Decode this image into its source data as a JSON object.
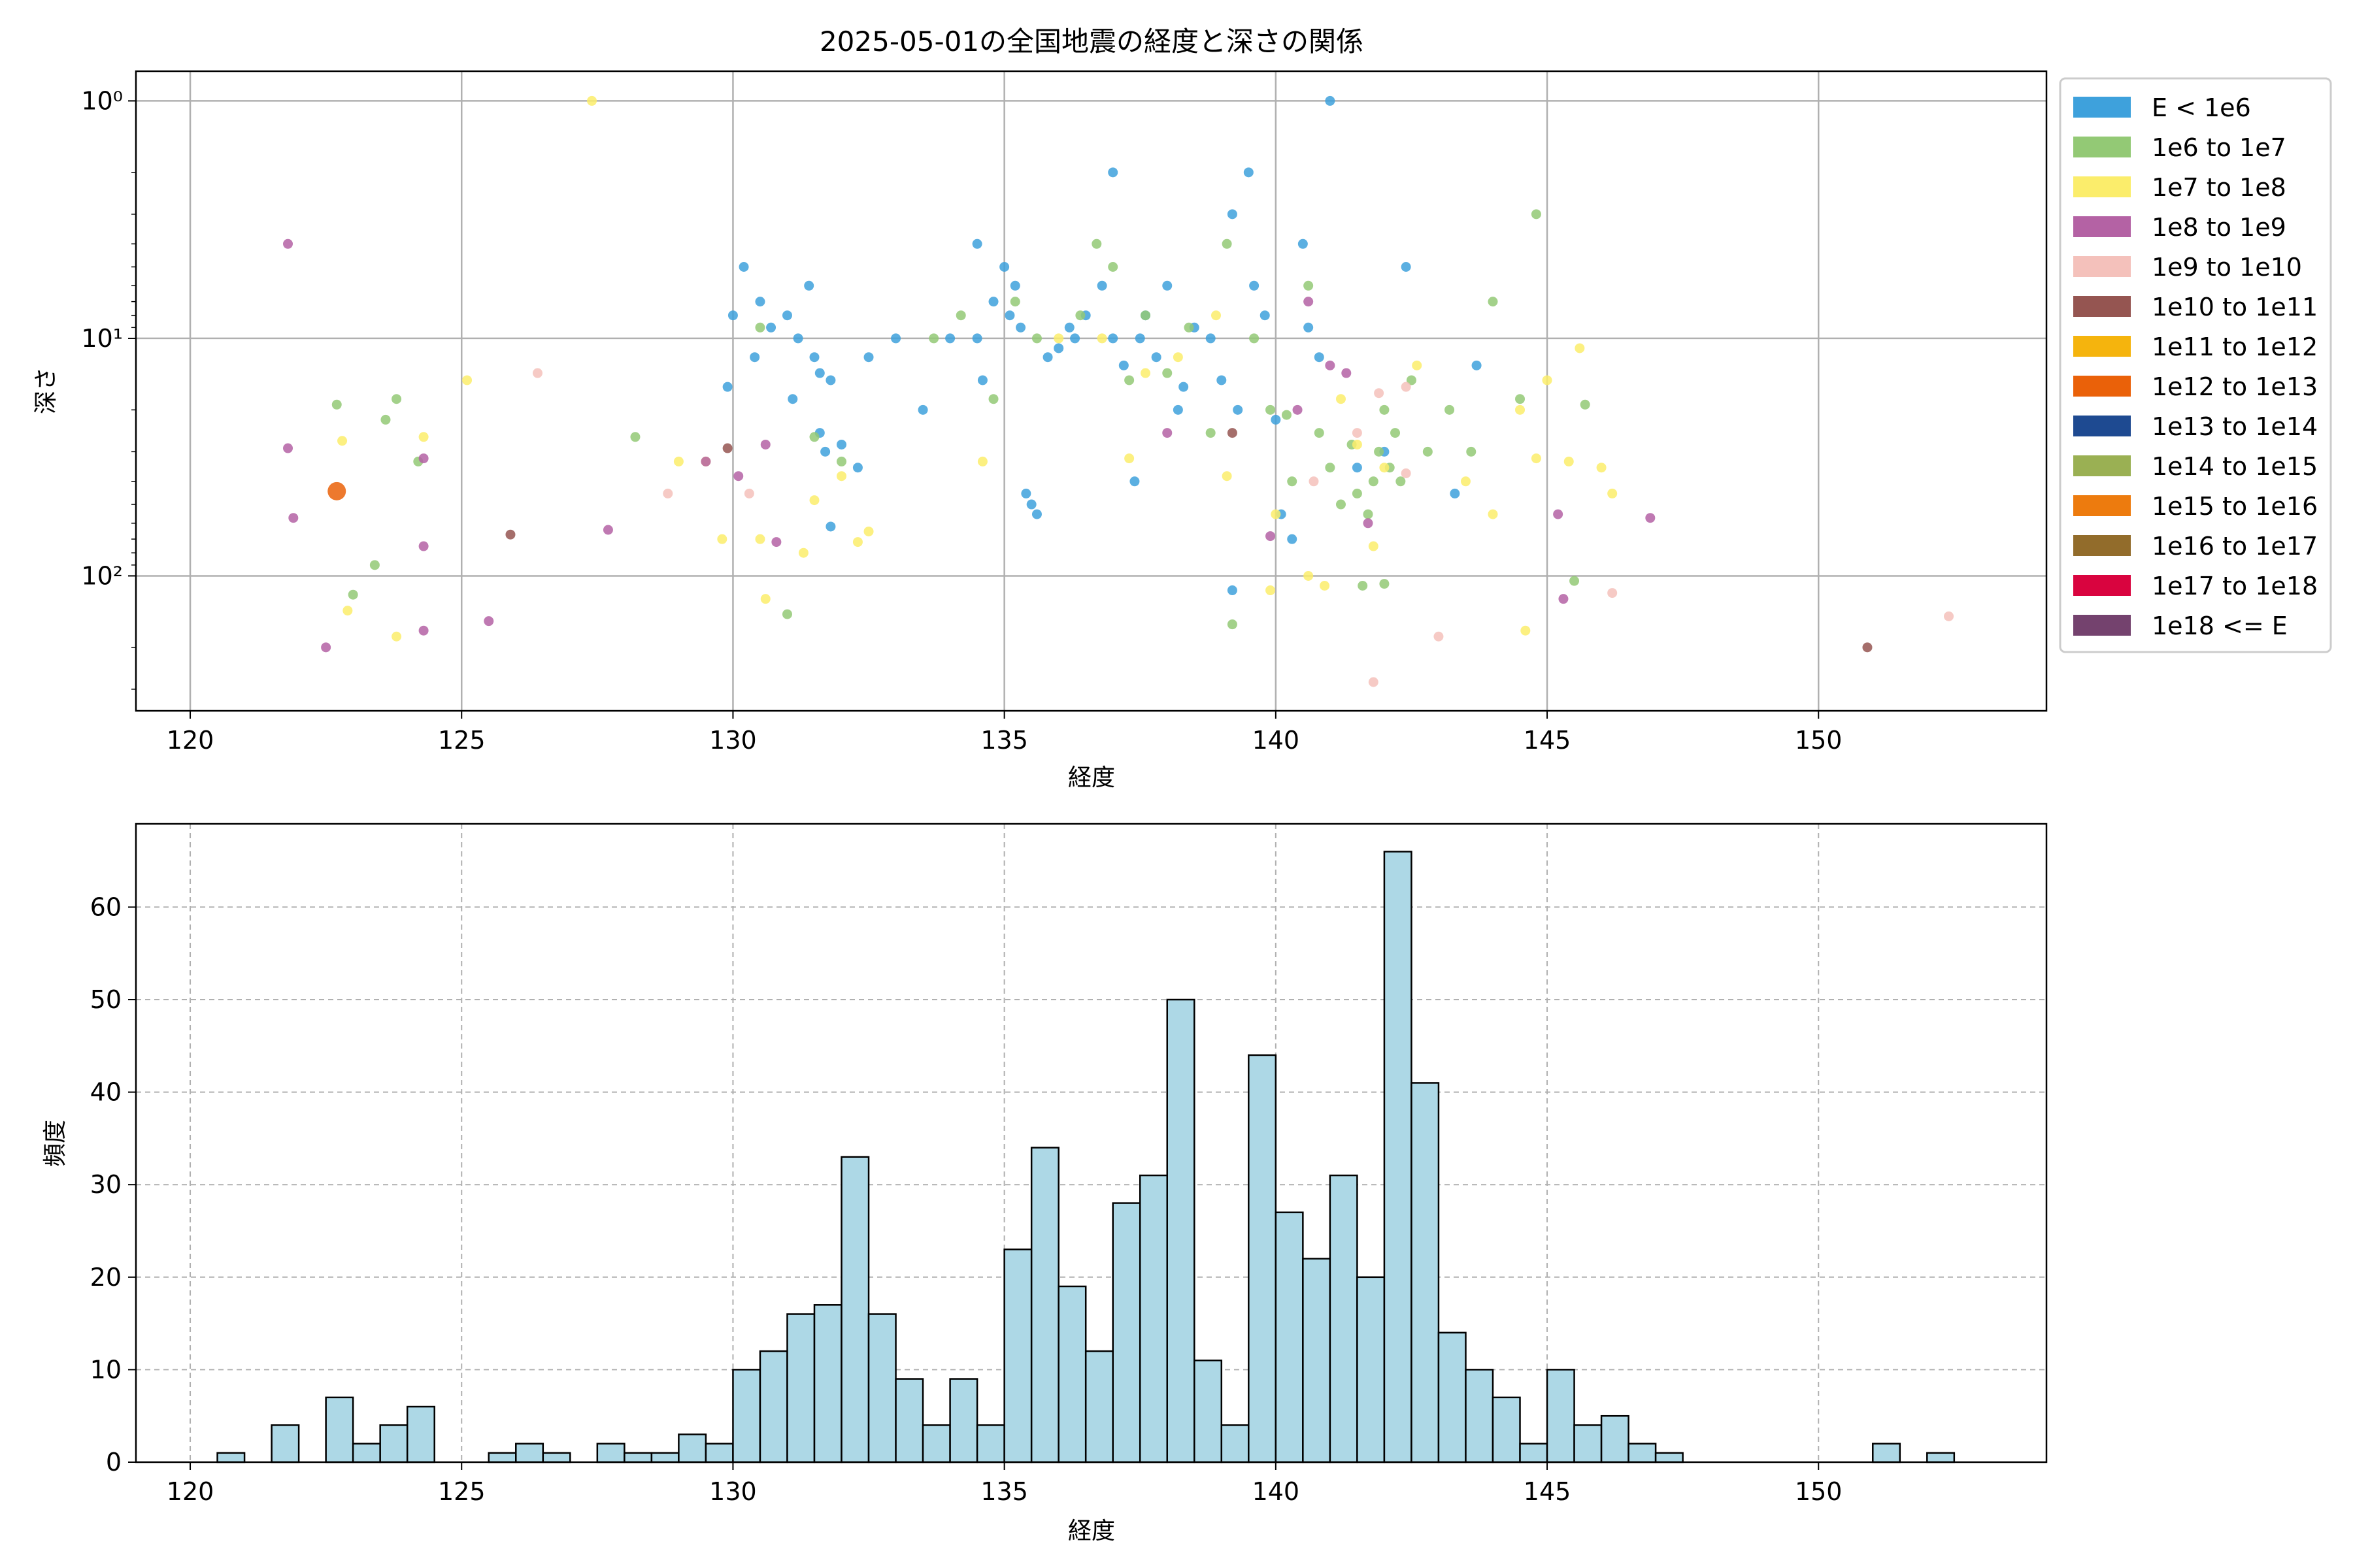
{
  "title": "2025-05-01の全国地震の経度と深さの関係",
  "chart_data": [
    {
      "type": "scatter",
      "title": "2025-05-01の全国地震の経度と深さの関係",
      "xlabel": "経度",
      "ylabel": "深さ",
      "xlim": [
        119,
        154.2
      ],
      "ylim": [
        370,
        0.75
      ],
      "y_scale": "log",
      "y_inverted": true,
      "grid": true,
      "legend_position": "outside-right",
      "x_ticks": [
        120,
        125,
        130,
        135,
        140,
        145,
        150
      ],
      "y_ticks": [
        {
          "v": 1,
          "label": "10⁰"
        },
        {
          "v": 10,
          "label": "10¹"
        },
        {
          "v": 100,
          "label": "10²"
        }
      ],
      "legend": [
        {
          "label": "E < 1e6",
          "color": "#3ea1dc"
        },
        {
          "label": "1e6 to 1e7",
          "color": "#93c975"
        },
        {
          "label": "1e7 to 1e8",
          "color": "#fbed6b"
        },
        {
          "label": "1e8 to 1e9",
          "color": "#b462a4"
        },
        {
          "label": "1e9 to 1e10",
          "color": "#f4c1bb"
        },
        {
          "label": "1e10 to 1e11",
          "color": "#955551"
        },
        {
          "label": "1e11 to 1e12",
          "color": "#f5b40d"
        },
        {
          "label": "1e12 to 1e13",
          "color": "#ea6109"
        },
        {
          "label": "1e13 to 1e14",
          "color": "#1e4a91"
        },
        {
          "label": "1e14 to 1e15",
          "color": "#9ab053"
        },
        {
          "label": "1e15 to 1e16",
          "color": "#ed7b0e"
        },
        {
          "label": "1e16 to 1e17",
          "color": "#926c2b"
        },
        {
          "label": "1e17 to 1e18",
          "color": "#d9043f"
        },
        {
          "label": "1e18 <= E",
          "color": "#74426e"
        }
      ],
      "points": [
        {
          "x": 130.2,
          "y": 5,
          "c": 0
        },
        {
          "x": 130.5,
          "y": 7,
          "c": 0
        },
        {
          "x": 130.7,
          "y": 9,
          "c": 0
        },
        {
          "x": 131.0,
          "y": 8,
          "c": 0
        },
        {
          "x": 131.2,
          "y": 10,
          "c": 0
        },
        {
          "x": 131.4,
          "y": 6,
          "c": 0
        },
        {
          "x": 131.5,
          "y": 12,
          "c": 0
        },
        {
          "x": 131.6,
          "y": 14,
          "c": 0
        },
        {
          "x": 131.8,
          "y": 15,
          "c": 0
        },
        {
          "x": 131.6,
          "y": 25,
          "c": 0
        },
        {
          "x": 131.7,
          "y": 30,
          "c": 0
        },
        {
          "x": 131.8,
          "y": 62,
          "c": 0
        },
        {
          "x": 132.3,
          "y": 35,
          "c": 0
        },
        {
          "x": 132.5,
          "y": 12,
          "c": 0
        },
        {
          "x": 133.0,
          "y": 10,
          "c": 0
        },
        {
          "x": 133.5,
          "y": 20,
          "c": 0
        },
        {
          "x": 134.0,
          "y": 10,
          "c": 0
        },
        {
          "x": 134.5,
          "y": 4,
          "c": 0
        },
        {
          "x": 134.5,
          "y": 10,
          "c": 0
        },
        {
          "x": 134.6,
          "y": 15,
          "c": 0
        },
        {
          "x": 134.8,
          "y": 7,
          "c": 0
        },
        {
          "x": 135.0,
          "y": 5,
          "c": 0
        },
        {
          "x": 135.1,
          "y": 8,
          "c": 0
        },
        {
          "x": 135.2,
          "y": 6,
          "c": 0
        },
        {
          "x": 135.3,
          "y": 9,
          "c": 0
        },
        {
          "x": 135.4,
          "y": 45,
          "c": 0
        },
        {
          "x": 135.5,
          "y": 50,
          "c": 0
        },
        {
          "x": 135.6,
          "y": 55,
          "c": 0
        },
        {
          "x": 135.8,
          "y": 12,
          "c": 0
        },
        {
          "x": 136.0,
          "y": 11,
          "c": 0
        },
        {
          "x": 136.3,
          "y": 10,
          "c": 0
        },
        {
          "x": 136.5,
          "y": 8,
          "c": 0
        },
        {
          "x": 136.8,
          "y": 6,
          "c": 0
        },
        {
          "x": 137.0,
          "y": 10,
          "c": 0
        },
        {
          "x": 137.0,
          "y": 2,
          "c": 0
        },
        {
          "x": 137.2,
          "y": 13,
          "c": 0
        },
        {
          "x": 137.4,
          "y": 40,
          "c": 0
        },
        {
          "x": 137.5,
          "y": 10,
          "c": 0
        },
        {
          "x": 137.6,
          "y": 8,
          "c": 0
        },
        {
          "x": 137.8,
          "y": 12,
          "c": 0
        },
        {
          "x": 138.0,
          "y": 6,
          "c": 0
        },
        {
          "x": 138.2,
          "y": 20,
          "c": 0
        },
        {
          "x": 138.5,
          "y": 9,
          "c": 0
        },
        {
          "x": 138.8,
          "y": 10,
          "c": 0
        },
        {
          "x": 139.0,
          "y": 15,
          "c": 0
        },
        {
          "x": 139.2,
          "y": 3,
          "c": 0
        },
        {
          "x": 139.3,
          "y": 20,
          "c": 0
        },
        {
          "x": 139.5,
          "y": 2,
          "c": 0
        },
        {
          "x": 139.6,
          "y": 6,
          "c": 0
        },
        {
          "x": 139.8,
          "y": 8,
          "c": 0
        },
        {
          "x": 140.0,
          "y": 22,
          "c": 0
        },
        {
          "x": 140.1,
          "y": 55,
          "c": 0
        },
        {
          "x": 140.3,
          "y": 70,
          "c": 0
        },
        {
          "x": 140.5,
          "y": 4,
          "c": 0
        },
        {
          "x": 140.6,
          "y": 9,
          "c": 0
        },
        {
          "x": 140.8,
          "y": 12,
          "c": 0
        },
        {
          "x": 141.0,
          "y": 1,
          "c": 0
        },
        {
          "x": 139.2,
          "y": 115,
          "c": 0
        },
        {
          "x": 142.4,
          "y": 5,
          "c": 0
        },
        {
          "x": 143.3,
          "y": 45,
          "c": 0
        },
        {
          "x": 143.7,
          "y": 13,
          "c": 0
        },
        {
          "x": 129.9,
          "y": 16,
          "c": 0
        },
        {
          "x": 130.0,
          "y": 8,
          "c": 0
        },
        {
          "x": 130.4,
          "y": 12,
          "c": 0
        },
        {
          "x": 131.1,
          "y": 18,
          "c": 0
        },
        {
          "x": 132.0,
          "y": 28,
          "c": 0
        },
        {
          "x": 136.2,
          "y": 9,
          "c": 0
        },
        {
          "x": 138.3,
          "y": 16,
          "c": 0
        },
        {
          "x": 141.5,
          "y": 35,
          "c": 0
        },
        {
          "x": 142.0,
          "y": 30,
          "c": 0
        },
        {
          "x": 122.7,
          "y": 19,
          "c": 1
        },
        {
          "x": 123.0,
          "y": 120,
          "c": 1
        },
        {
          "x": 123.4,
          "y": 90,
          "c": 1
        },
        {
          "x": 123.6,
          "y": 22,
          "c": 1
        },
        {
          "x": 123.8,
          "y": 18,
          "c": 1
        },
        {
          "x": 124.2,
          "y": 33,
          "c": 1
        },
        {
          "x": 128.2,
          "y": 26,
          "c": 1
        },
        {
          "x": 130.5,
          "y": 9,
          "c": 1
        },
        {
          "x": 131.0,
          "y": 145,
          "c": 1
        },
        {
          "x": 131.5,
          "y": 26,
          "c": 1
        },
        {
          "x": 132.0,
          "y": 33,
          "c": 1
        },
        {
          "x": 133.7,
          "y": 10,
          "c": 1
        },
        {
          "x": 134.2,
          "y": 8,
          "c": 1
        },
        {
          "x": 134.8,
          "y": 18,
          "c": 1
        },
        {
          "x": 135.2,
          "y": 7,
          "c": 1
        },
        {
          "x": 135.6,
          "y": 10,
          "c": 1
        },
        {
          "x": 136.4,
          "y": 8,
          "c": 1
        },
        {
          "x": 136.7,
          "y": 4,
          "c": 1
        },
        {
          "x": 137.0,
          "y": 5,
          "c": 1
        },
        {
          "x": 137.3,
          "y": 15,
          "c": 1
        },
        {
          "x": 137.6,
          "y": 8,
          "c": 1
        },
        {
          "x": 138.0,
          "y": 14,
          "c": 1
        },
        {
          "x": 138.4,
          "y": 9,
          "c": 1
        },
        {
          "x": 138.8,
          "y": 25,
          "c": 1
        },
        {
          "x": 139.1,
          "y": 4,
          "c": 1
        },
        {
          "x": 139.2,
          "y": 160,
          "c": 1
        },
        {
          "x": 139.6,
          "y": 10,
          "c": 1
        },
        {
          "x": 139.9,
          "y": 20,
          "c": 1
        },
        {
          "x": 140.3,
          "y": 40,
          "c": 1
        },
        {
          "x": 140.6,
          "y": 6,
          "c": 1
        },
        {
          "x": 140.8,
          "y": 25,
          "c": 1
        },
        {
          "x": 141.0,
          "y": 35,
          "c": 1
        },
        {
          "x": 141.2,
          "y": 50,
          "c": 1
        },
        {
          "x": 141.4,
          "y": 28,
          "c": 1
        },
        {
          "x": 141.5,
          "y": 45,
          "c": 1
        },
        {
          "x": 141.6,
          "y": 110,
          "c": 1
        },
        {
          "x": 141.7,
          "y": 55,
          "c": 1
        },
        {
          "x": 141.8,
          "y": 40,
          "c": 1
        },
        {
          "x": 141.9,
          "y": 30,
          "c": 1
        },
        {
          "x": 142.0,
          "y": 20,
          "c": 1
        },
        {
          "x": 142.1,
          "y": 35,
          "c": 1
        },
        {
          "x": 142.2,
          "y": 25,
          "c": 1
        },
        {
          "x": 142.3,
          "y": 40,
          "c": 1
        },
        {
          "x": 142.5,
          "y": 15,
          "c": 1
        },
        {
          "x": 142.8,
          "y": 30,
          "c": 1
        },
        {
          "x": 143.2,
          "y": 20,
          "c": 1
        },
        {
          "x": 143.6,
          "y": 30,
          "c": 1
        },
        {
          "x": 144.0,
          "y": 7,
          "c": 1
        },
        {
          "x": 144.5,
          "y": 18,
          "c": 1
        },
        {
          "x": 144.8,
          "y": 3,
          "c": 1
        },
        {
          "x": 145.5,
          "y": 105,
          "c": 1
        },
        {
          "x": 145.7,
          "y": 19,
          "c": 1
        },
        {
          "x": 142.0,
          "y": 108,
          "c": 1
        },
        {
          "x": 140.2,
          "y": 21,
          "c": 1
        },
        {
          "x": 122.8,
          "y": 27,
          "c": 2
        },
        {
          "x": 122.9,
          "y": 140,
          "c": 2
        },
        {
          "x": 123.8,
          "y": 180,
          "c": 2
        },
        {
          "x": 124.3,
          "y": 26,
          "c": 2
        },
        {
          "x": 125.1,
          "y": 15,
          "c": 2
        },
        {
          "x": 127.4,
          "y": 1,
          "c": 2
        },
        {
          "x": 129.0,
          "y": 33,
          "c": 2
        },
        {
          "x": 129.5,
          "y": 33,
          "c": 2
        },
        {
          "x": 129.8,
          "y": 70,
          "c": 2
        },
        {
          "x": 130.5,
          "y": 70,
          "c": 2
        },
        {
          "x": 130.6,
          "y": 125,
          "c": 2
        },
        {
          "x": 131.5,
          "y": 48,
          "c": 2
        },
        {
          "x": 132.0,
          "y": 38,
          "c": 2
        },
        {
          "x": 132.3,
          "y": 72,
          "c": 2
        },
        {
          "x": 134.6,
          "y": 33,
          "c": 2
        },
        {
          "x": 136.0,
          "y": 10,
          "c": 2
        },
        {
          "x": 136.8,
          "y": 10,
          "c": 2
        },
        {
          "x": 137.3,
          "y": 32,
          "c": 2
        },
        {
          "x": 137.6,
          "y": 14,
          "c": 2
        },
        {
          "x": 138.2,
          "y": 12,
          "c": 2
        },
        {
          "x": 138.9,
          "y": 8,
          "c": 2
        },
        {
          "x": 139.1,
          "y": 38,
          "c": 2
        },
        {
          "x": 139.9,
          "y": 115,
          "c": 2
        },
        {
          "x": 140.0,
          "y": 55,
          "c": 2
        },
        {
          "x": 140.6,
          "y": 100,
          "c": 2
        },
        {
          "x": 140.9,
          "y": 110,
          "c": 2
        },
        {
          "x": 141.2,
          "y": 18,
          "c": 2
        },
        {
          "x": 141.5,
          "y": 28,
          "c": 2
        },
        {
          "x": 141.8,
          "y": 75,
          "c": 2
        },
        {
          "x": 142.0,
          "y": 35,
          "c": 2
        },
        {
          "x": 142.6,
          "y": 13,
          "c": 2
        },
        {
          "x": 143.5,
          "y": 40,
          "c": 2
        },
        {
          "x": 144.0,
          "y": 55,
          "c": 2
        },
        {
          "x": 144.5,
          "y": 20,
          "c": 2
        },
        {
          "x": 144.6,
          "y": 170,
          "c": 2
        },
        {
          "x": 144.8,
          "y": 32,
          "c": 2
        },
        {
          "x": 145.0,
          "y": 15,
          "c": 2
        },
        {
          "x": 145.4,
          "y": 33,
          "c": 2
        },
        {
          "x": 145.6,
          "y": 11,
          "c": 2
        },
        {
          "x": 146.0,
          "y": 35,
          "c": 2
        },
        {
          "x": 146.2,
          "y": 45,
          "c": 2
        },
        {
          "x": 131.3,
          "y": 80,
          "c": 2
        },
        {
          "x": 132.5,
          "y": 65,
          "c": 2
        },
        {
          "x": 121.8,
          "y": 4,
          "c": 3
        },
        {
          "x": 121.8,
          "y": 29,
          "c": 3
        },
        {
          "x": 121.9,
          "y": 57,
          "c": 3
        },
        {
          "x": 122.5,
          "y": 200,
          "c": 3
        },
        {
          "x": 124.3,
          "y": 75,
          "c": 3
        },
        {
          "x": 124.3,
          "y": 170,
          "c": 3
        },
        {
          "x": 124.3,
          "y": 32,
          "c": 3
        },
        {
          "x": 125.5,
          "y": 155,
          "c": 3
        },
        {
          "x": 127.7,
          "y": 64,
          "c": 3
        },
        {
          "x": 129.5,
          "y": 33,
          "c": 3
        },
        {
          "x": 130.1,
          "y": 38,
          "c": 3
        },
        {
          "x": 130.6,
          "y": 28,
          "c": 3
        },
        {
          "x": 130.8,
          "y": 72,
          "c": 3
        },
        {
          "x": 138.0,
          "y": 25,
          "c": 3
        },
        {
          "x": 139.9,
          "y": 68,
          "c": 3
        },
        {
          "x": 140.4,
          "y": 20,
          "c": 3
        },
        {
          "x": 140.6,
          "y": 7,
          "c": 3
        },
        {
          "x": 141.0,
          "y": 13,
          "c": 3
        },
        {
          "x": 141.3,
          "y": 14,
          "c": 3
        },
        {
          "x": 141.7,
          "y": 60,
          "c": 3
        },
        {
          "x": 145.2,
          "y": 55,
          "c": 3
        },
        {
          "x": 145.3,
          "y": 125,
          "c": 3
        },
        {
          "x": 146.9,
          "y": 57,
          "c": 3
        },
        {
          "x": 126.4,
          "y": 14,
          "c": 4
        },
        {
          "x": 128.8,
          "y": 45,
          "c": 4
        },
        {
          "x": 130.3,
          "y": 45,
          "c": 4
        },
        {
          "x": 140.7,
          "y": 40,
          "c": 4
        },
        {
          "x": 141.5,
          "y": 25,
          "c": 4
        },
        {
          "x": 141.8,
          "y": 280,
          "c": 4
        },
        {
          "x": 141.9,
          "y": 17,
          "c": 4
        },
        {
          "x": 142.4,
          "y": 16,
          "c": 4
        },
        {
          "x": 142.4,
          "y": 37,
          "c": 4
        },
        {
          "x": 143.0,
          "y": 180,
          "c": 4
        },
        {
          "x": 146.2,
          "y": 118,
          "c": 4
        },
        {
          "x": 152.4,
          "y": 148,
          "c": 4
        },
        {
          "x": 125.9,
          "y": 67,
          "c": 5
        },
        {
          "x": 129.9,
          "y": 29,
          "c": 5
        },
        {
          "x": 139.2,
          "y": 25,
          "c": 5
        },
        {
          "x": 150.9,
          "y": 200,
          "c": 5
        },
        {
          "x": 122.7,
          "y": 44,
          "c": 7,
          "s": 2
        }
      ]
    },
    {
      "type": "bar",
      "xlabel": "経度",
      "ylabel": "頻度",
      "xlim": [
        119,
        154.2
      ],
      "ylim": [
        0,
        69
      ],
      "grid": true,
      "grid_style": "dashed",
      "bin_start": 120.0,
      "bin_width": 0.5,
      "bar_color": "#add8e6",
      "x_ticks": [
        120,
        125,
        130,
        135,
        140,
        145,
        150
      ],
      "y_ticks": [
        0,
        10,
        20,
        30,
        40,
        50,
        60
      ],
      "values": [
        0,
        1,
        0,
        4,
        0,
        7,
        2,
        4,
        6,
        0,
        0,
        1,
        2,
        1,
        0,
        2,
        1,
        1,
        3,
        2,
        10,
        12,
        16,
        17,
        33,
        16,
        9,
        4,
        9,
        4,
        23,
        34,
        19,
        12,
        28,
        31,
        50,
        11,
        4,
        44,
        27,
        22,
        31,
        20,
        66,
        41,
        14,
        10,
        7,
        2,
        10,
        4,
        5,
        2,
        1,
        0,
        0,
        0,
        0,
        0,
        0,
        0,
        2,
        0,
        1
      ]
    }
  ]
}
